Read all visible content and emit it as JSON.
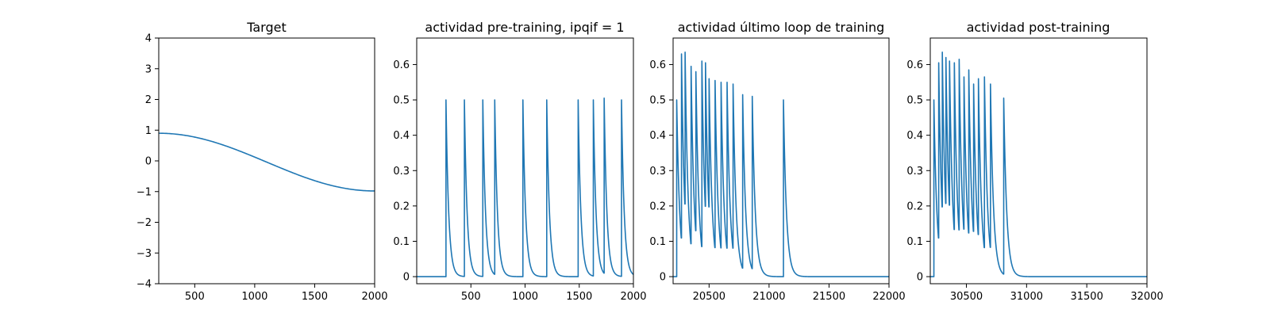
{
  "figure": {
    "line_color": "#1f77b4",
    "frame_color": "#000000",
    "background": "#ffffff"
  },
  "chart_data": [
    {
      "type": "line",
      "title": "Target",
      "xlabel": "",
      "ylabel": "",
      "xlim": [
        200,
        2000
      ],
      "ylim": [
        -4,
        4
      ],
      "xticks": [
        500,
        1000,
        1500,
        2000
      ],
      "yticks": [
        -4,
        -3,
        -2,
        -1,
        0,
        1,
        2,
        3,
        4
      ],
      "grid": false,
      "signal": {
        "kind": "cosine",
        "description_value": "0.9 at x=200 smoothly declining to about -0.98 at x=2000",
        "x": [
          200,
          400,
          600,
          800,
          1000,
          1200,
          1400,
          1600,
          1800,
          2000
        ],
        "y": [
          0.9,
          0.75,
          0.55,
          0.32,
          0.07,
          -0.2,
          -0.47,
          -0.72,
          -0.92,
          -0.98
        ]
      }
    },
    {
      "type": "line",
      "title": "actividad pre-training, ipqif = 1",
      "xlabel": "",
      "ylabel": "",
      "xlim": [
        0,
        2000
      ],
      "ylim": [
        -0.02,
        0.675
      ],
      "xticks": [
        500,
        1000,
        1500,
        2000
      ],
      "yticks": [
        0.0,
        0.1,
        0.2,
        0.3,
        0.4,
        0.5,
        0.6
      ],
      "grid": false,
      "signal": {
        "kind": "spikes",
        "start_x": 0,
        "end_x": 2000,
        "decay_tau": 25,
        "spike_x": [
          270,
          440,
          610,
          720,
          980,
          1200,
          1490,
          1630,
          1730,
          1890
        ],
        "spike_peak": [
          0.5,
          0.5,
          0.5,
          0.5,
          0.5,
          0.5,
          0.5,
          0.5,
          0.505,
          0.5
        ]
      }
    },
    {
      "type": "line",
      "title": "actividad último loop de training",
      "xlabel": "",
      "ylabel": "",
      "xlim": [
        20200,
        22000
      ],
      "ylim": [
        -0.02,
        0.675
      ],
      "xticks": [
        20500,
        21000,
        21500,
        22000
      ],
      "yticks": [
        0.0,
        0.1,
        0.2,
        0.3,
        0.4,
        0.5,
        0.6
      ],
      "grid": false,
      "signal": {
        "kind": "spikes",
        "start_x": 20200,
        "end_x": 22000,
        "decay_tau": 25,
        "spike_x": [
          20230,
          20270,
          20300,
          20350,
          20390,
          20440,
          20470,
          20500,
          20550,
          20600,
          20650,
          20700,
          20780,
          20860,
          21120
        ],
        "spike_peak": [
          0.5,
          0.63,
          0.635,
          0.595,
          0.58,
          0.61,
          0.605,
          0.56,
          0.555,
          0.55,
          0.55,
          0.545,
          0.515,
          0.51,
          0.5
        ]
      }
    },
    {
      "type": "line",
      "title": "actividad post-training",
      "xlabel": "",
      "ylabel": "",
      "xlim": [
        30200,
        32000
      ],
      "ylim": [
        -0.02,
        0.675
      ],
      "xticks": [
        30500,
        31000,
        31500,
        32000
      ],
      "yticks": [
        0.0,
        0.1,
        0.2,
        0.3,
        0.4,
        0.5,
        0.6
      ],
      "grid": false,
      "signal": {
        "kind": "spikes",
        "start_x": 30200,
        "end_x": 32000,
        "decay_tau": 25,
        "spike_x": [
          30230,
          30270,
          30300,
          30330,
          30360,
          30400,
          30440,
          30480,
          30520,
          30560,
          30600,
          30650,
          30700,
          30810
        ],
        "spike_peak": [
          0.5,
          0.605,
          0.635,
          0.62,
          0.61,
          0.605,
          0.615,
          0.565,
          0.585,
          0.545,
          0.56,
          0.565,
          0.545,
          0.505
        ]
      }
    }
  ]
}
